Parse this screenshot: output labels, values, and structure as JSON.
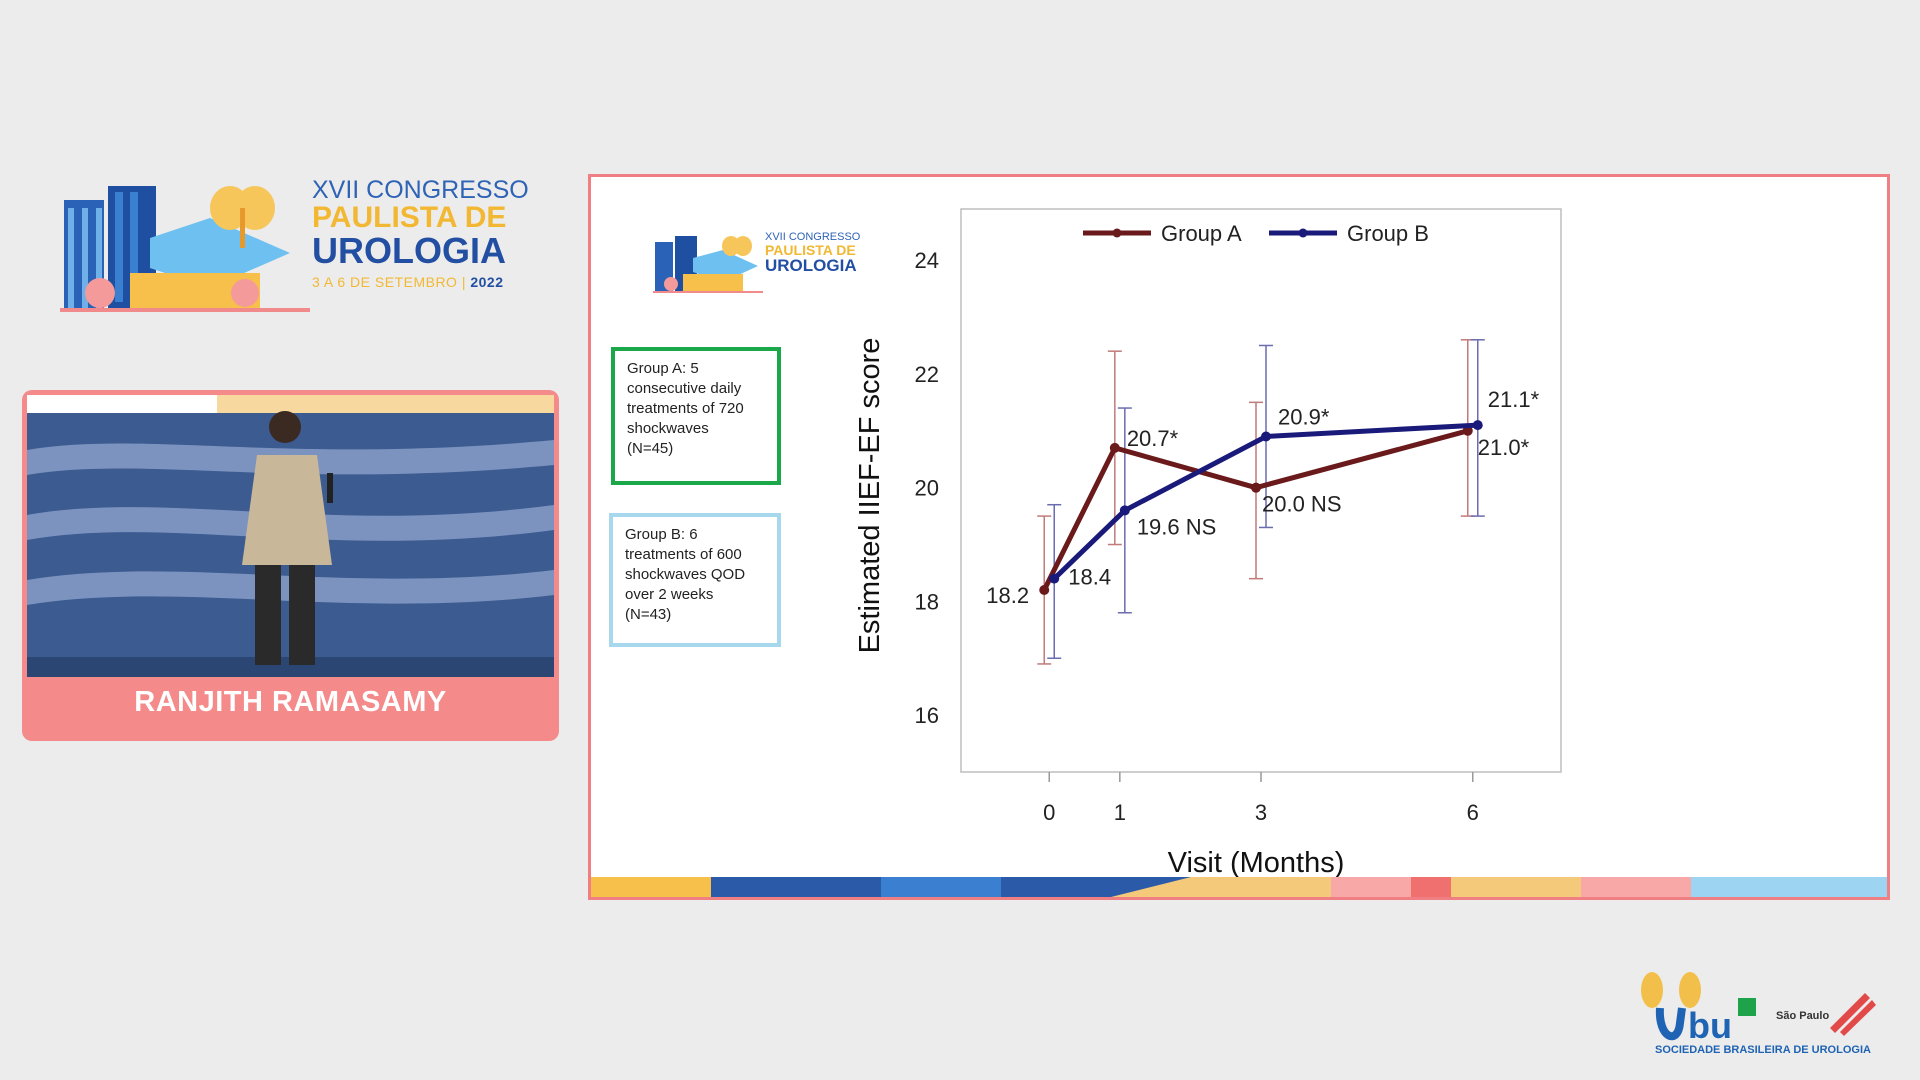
{
  "congress_logo": {
    "line1": "XVII CONGRESSO",
    "line2": "PAULISTA DE",
    "line3": "UROLOGIA",
    "dates": "3 A 6 DE SETEMBRO",
    "year": "2022"
  },
  "speaker": {
    "name": "RANJITH RAMASAMY"
  },
  "slide": {
    "group_a_box": [
      "Group A: 5",
      "consecutive daily",
      "treatments of 720",
      "shockwaves",
      "(N=45)"
    ],
    "group_b_box": [
      "Group B: 6",
      "treatments of 600",
      "shockwaves QOD",
      "over 2 weeks",
      "(N=43)"
    ]
  },
  "sbu_logo": {
    "text": "SOCIEDADE BRASILEIRA DE UROLOGIA",
    "region": "São Paulo"
  },
  "chart_data": {
    "type": "line",
    "xlabel": "Visit (Months)",
    "ylabel": "Estimated IIEF-EF score",
    "x": [
      0,
      1,
      3,
      6
    ],
    "xlim": [
      -1.25,
      7.25
    ],
    "ylim": [
      15,
      24.9
    ],
    "yticks": [
      16,
      18,
      20,
      22,
      24
    ],
    "legend_position": "top",
    "series": [
      {
        "name": "Group A",
        "color": "#6b1a1c",
        "values": [
          18.2,
          20.7,
          20.0,
          21.0
        ],
        "error_low": [
          16.9,
          19.0,
          18.4,
          19.5
        ],
        "error_high": [
          19.5,
          22.4,
          21.5,
          22.6
        ],
        "labels": [
          "18.2",
          "20.7*",
          "20.0 NS",
          "21.0*"
        ]
      },
      {
        "name": "Group B",
        "color": "#1a1a7a",
        "values": [
          18.4,
          19.6,
          20.9,
          21.1
        ],
        "error_low": [
          17.0,
          17.8,
          19.3,
          19.5
        ],
        "error_high": [
          19.7,
          21.4,
          22.5,
          22.6
        ],
        "labels": [
          "18.4",
          "19.6 NS",
          "20.9*",
          "21.1*"
        ]
      }
    ]
  }
}
